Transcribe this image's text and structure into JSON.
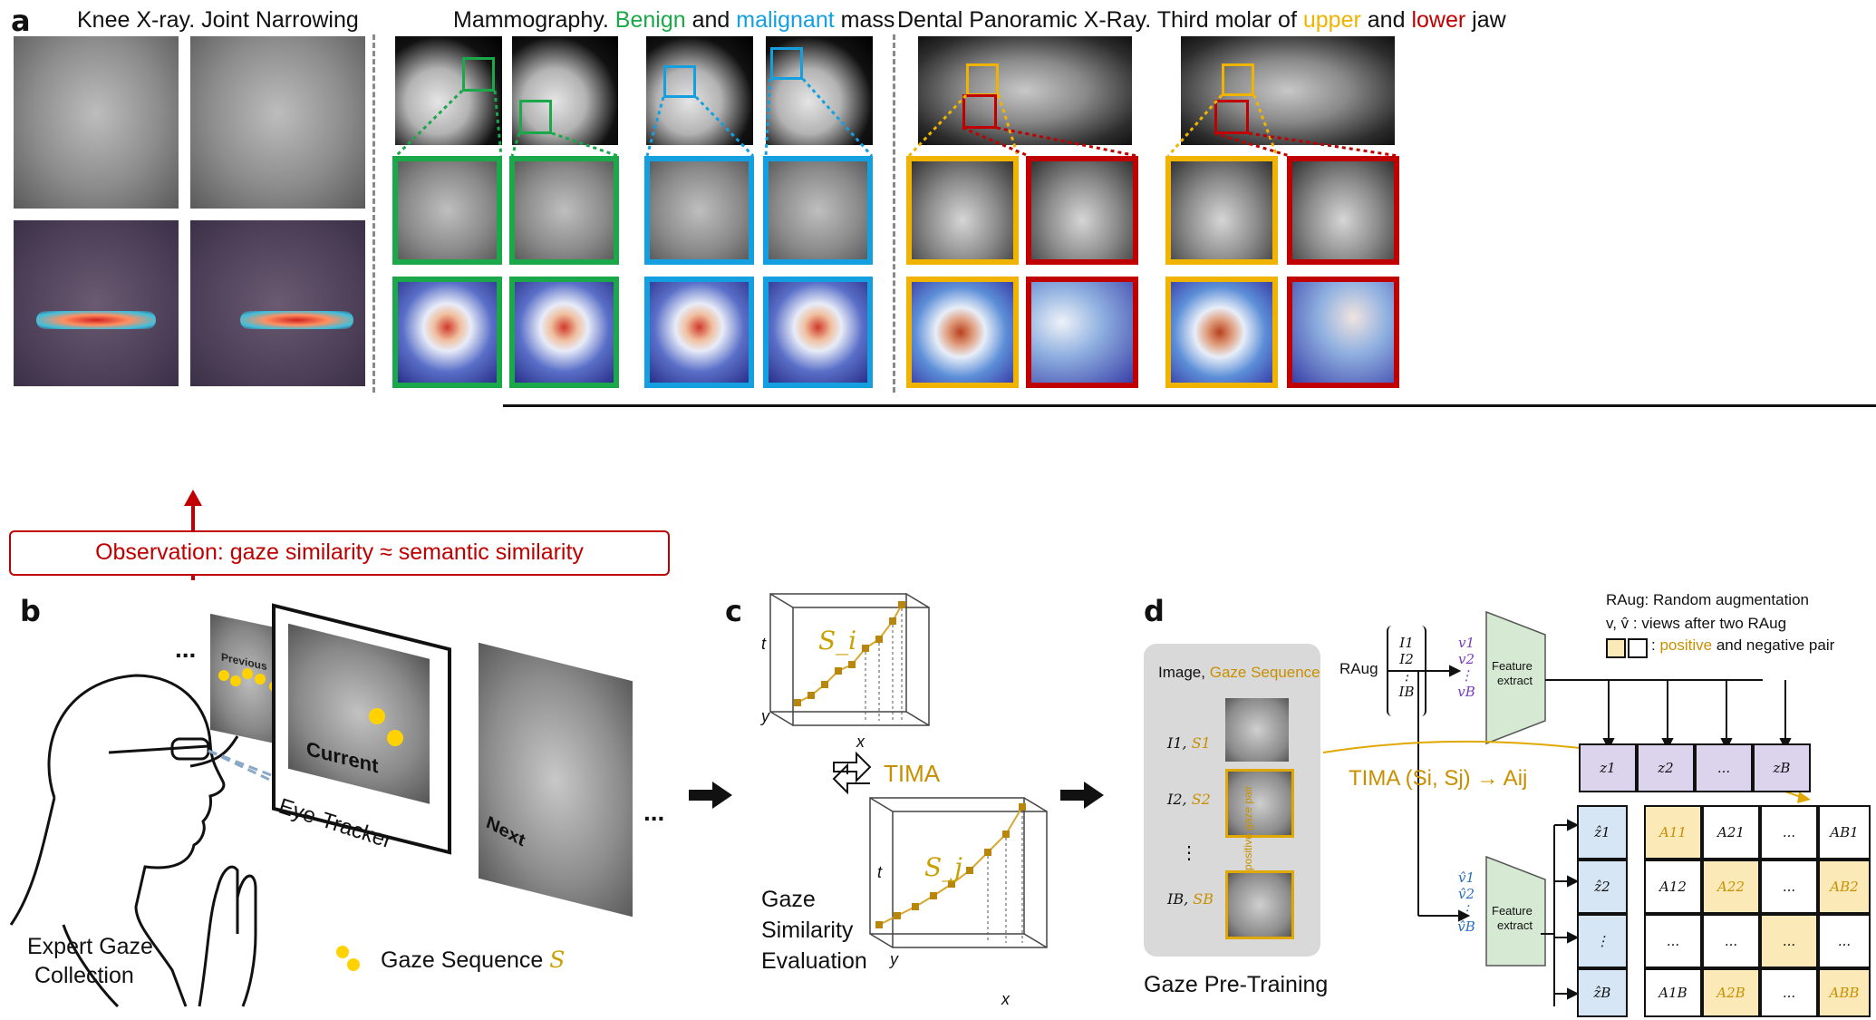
{
  "panel_a": {
    "letter": "a",
    "knee_title": "Knee X-ray. Joint Narrowing",
    "mammo_title": {
      "prefix": "Mammography.",
      "benign": "Benign",
      "and": "and",
      "malignant": "malignant",
      "suffix": "mass"
    },
    "dental_title": {
      "prefix": "Dental Panoramic X-Ray. Third molar of",
      "upper": "upper",
      "and": "and",
      "lower": "lower",
      "suffix": "jaw"
    },
    "observation": "Observation: gaze similarity ≈ semantic similarity"
  },
  "panel_b": {
    "letter": "b",
    "ellipsis_left": "...",
    "previous": "Previous",
    "current": "Current",
    "next": "Next",
    "ellipsis_right": "...",
    "eye_tracker": "Eye-Tracker",
    "expert_caption_1": "Expert Gaze",
    "expert_caption_2": "Collection",
    "gaze_seq_label": "Gaze Sequence",
    "gaze_seq_symbol": "S"
  },
  "panel_c": {
    "letter": "c",
    "top_axis_t": "t",
    "top_axis_y": "y",
    "top_axis_x": "x",
    "top_series": "S_i",
    "tima": "TIMA",
    "bottom_axis_t": "t",
    "bottom_axis_y": "y",
    "bottom_axis_x": "x",
    "bottom_series": "S_j",
    "caption_1": "Gaze",
    "caption_2": "Similarity",
    "caption_3": "Evaluation"
  },
  "panel_d": {
    "letter": "d",
    "legend_raug": "RAug: Random augmentation",
    "legend_views": "v, v̂  : views after two RAug",
    "legend_pair_colon": ":",
    "legend_positive": "positive",
    "legend_pair_rest": "and negative pair",
    "box_header_image": "Image,",
    "box_header_gaze": "Gaze Sequence",
    "rows": [
      {
        "img": "I1,",
        "gaze": "S1"
      },
      {
        "img": "I2,",
        "gaze": "S2"
      },
      {
        "img": "⋮",
        "gaze": ""
      },
      {
        "img": "IB,",
        "gaze": "SB"
      }
    ],
    "positive_pair": "positive gaze pair",
    "raug": "RAug",
    "input_stack": [
      "I1",
      "I2",
      "⋮",
      "IB"
    ],
    "views_top": [
      "v1",
      "v2",
      "⋮",
      "vB"
    ],
    "views_bottom": [
      "v̂1",
      "v̂2",
      "⋮",
      "v̂B"
    ],
    "feature_top": [
      "Feature",
      "extract"
    ],
    "feature_bottom": [
      "Feature",
      "extract"
    ],
    "tima_eq": "TIMA (Si, Sj) → Aij",
    "z_header": [
      "z1",
      "z2",
      "...",
      "zB"
    ],
    "zhat_col": [
      "ẑ1",
      "ẑ2",
      "⋮",
      "ẑB"
    ],
    "matrix": [
      [
        "A11",
        "A21",
        "...",
        "AB1"
      ],
      [
        "A12",
        "A22",
        "...",
        "AB2"
      ],
      [
        "...",
        "...",
        "...",
        "..."
      ],
      [
        "A1B",
        "A2B",
        "...",
        "ABB"
      ]
    ],
    "caption": "Gaze Pre-Training"
  },
  "colors": {
    "benign": "#1aa84a",
    "malignant": "#14a0e0",
    "upper": "#f0b400",
    "lower": "#c00000",
    "gaze": "#c8a000",
    "tima": "#c89000",
    "positive_fill": "#fbe9b7",
    "z_fill": "#dcd3ec",
    "zhat_fill": "#d7e6f4",
    "feature_fill": "#d6ead3"
  }
}
